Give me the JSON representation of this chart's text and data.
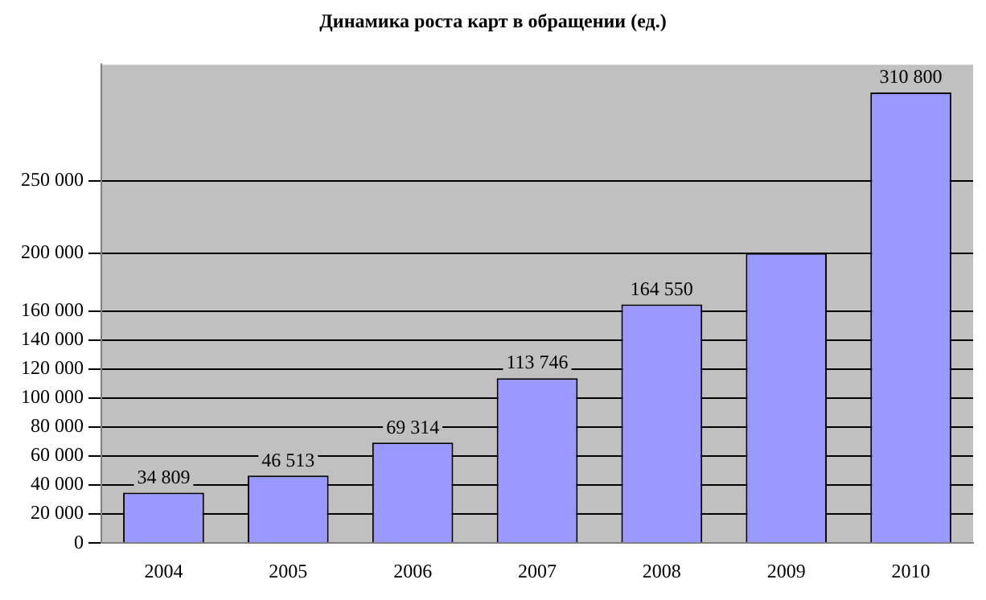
{
  "chart_data": {
    "type": "bar",
    "title": "Динамика роста карт в обращении (ед.)",
    "categories": [
      "2004",
      "2005",
      "2006",
      "2007",
      "2008",
      "2009",
      "2010"
    ],
    "values": [
      34809,
      46513,
      69314,
      113746,
      164550,
      200000,
      310800
    ],
    "value_labels": [
      "34 809",
      "46 513",
      "69 314",
      "113 746",
      "164 550",
      null,
      "310 800"
    ],
    "color": "#9999ff",
    "ylim": [
      0,
      330000
    ],
    "yticks": [
      {
        "value": 0,
        "label": "0"
      },
      {
        "value": 20000,
        "label": "20 000"
      },
      {
        "value": 40000,
        "label": "40 000"
      },
      {
        "value": 60000,
        "label": "60 000"
      },
      {
        "value": 80000,
        "label": "80 000"
      },
      {
        "value": 100000,
        "label": "100 000"
      },
      {
        "value": 120000,
        "label": "120 000"
      },
      {
        "value": 140000,
        "label": "140 000"
      },
      {
        "value": 160000,
        "label": "160 000"
      },
      {
        "value": 200000,
        "label": "200 000"
      },
      {
        "value": 250000,
        "label": "250 000"
      }
    ],
    "grid": "y"
  }
}
